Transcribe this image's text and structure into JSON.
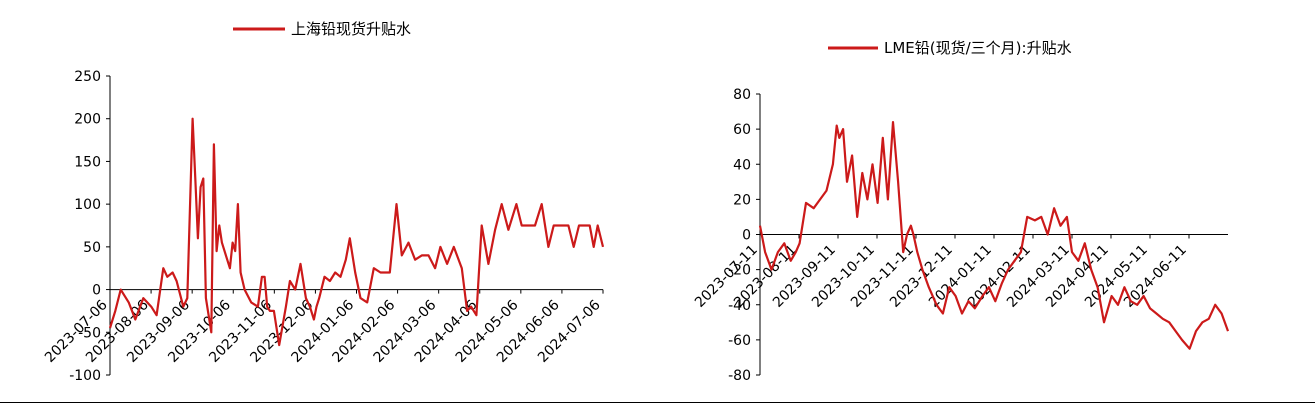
{
  "chart_data": [
    {
      "type": "line",
      "title": "",
      "xlabel": "",
      "ylabel": "",
      "ylim": [
        -100,
        250
      ],
      "y_ticks": [
        -100,
        -50,
        0,
        50,
        100,
        150,
        200,
        250
      ],
      "x_tick_labels": [
        "2023-07-06",
        "2023-08-06",
        "2023-09-06",
        "2023-10-06",
        "2023-11-06",
        "2023-12-06",
        "2024-01-06",
        "2024-02-06",
        "2024-03-06",
        "2024-04-06",
        "2024-05-06",
        "2024-06-06",
        "2024-07-06"
      ],
      "legend_position": "top",
      "grid": false,
      "series": [
        {
          "name": "上海铅现货升贴水",
          "color": "#cc1a1a",
          "x": [
            "2023-07-06",
            "2023-07-10",
            "2023-07-14",
            "2023-07-20",
            "2023-07-25",
            "2023-07-31",
            "2023-08-06",
            "2023-08-10",
            "2023-08-15",
            "2023-08-18",
            "2023-08-22",
            "2023-08-25",
            "2023-08-30",
            "2023-09-02",
            "2023-09-06",
            "2023-09-08",
            "2023-09-10",
            "2023-09-12",
            "2023-09-14",
            "2023-09-16",
            "2023-09-18",
            "2023-09-20",
            "2023-09-22",
            "2023-09-24",
            "2023-09-26",
            "2023-09-28",
            "2023-10-01",
            "2023-10-04",
            "2023-10-06",
            "2023-10-08",
            "2023-10-10",
            "2023-10-12",
            "2023-10-15",
            "2023-10-20",
            "2023-10-25",
            "2023-10-28",
            "2023-10-30",
            "2023-11-01",
            "2023-11-03",
            "2023-11-06",
            "2023-11-10",
            "2023-11-15",
            "2023-11-18",
            "2023-11-22",
            "2023-11-26",
            "2023-11-30",
            "2023-12-03",
            "2023-12-06",
            "2023-12-08",
            "2023-12-10",
            "2023-12-14",
            "2023-12-18",
            "2023-12-22",
            "2023-12-26",
            "2023-12-30",
            "2024-01-02",
            "2024-01-06",
            "2024-01-10",
            "2024-01-15",
            "2024-01-20",
            "2024-01-25",
            "2024-02-01",
            "2024-02-06",
            "2024-02-10",
            "2024-02-15",
            "2024-02-20",
            "2024-02-25",
            "2024-03-01",
            "2024-03-06",
            "2024-03-10",
            "2024-03-15",
            "2024-03-20",
            "2024-03-26",
            "2024-03-30",
            "2024-04-02",
            "2024-04-06",
            "2024-04-10",
            "2024-04-15",
            "2024-04-20",
            "2024-04-25",
            "2024-04-30",
            "2024-05-06",
            "2024-05-10",
            "2024-05-15",
            "2024-05-20",
            "2024-05-25",
            "2024-05-30",
            "2024-06-03",
            "2024-06-06",
            "2024-06-10",
            "2024-06-14",
            "2024-06-18",
            "2024-06-22",
            "2024-06-26",
            "2024-06-30",
            "2024-07-03",
            "2024-07-06",
            "2024-07-10"
          ],
          "y": [
            -45,
            -25,
            0,
            -15,
            -35,
            -10,
            -20,
            -30,
            25,
            15,
            20,
            10,
            -20,
            -10,
            200,
            130,
            60,
            120,
            130,
            -10,
            -30,
            -50,
            170,
            45,
            75,
            55,
            40,
            25,
            55,
            45,
            100,
            20,
            0,
            -15,
            -20,
            15,
            15,
            -20,
            -25,
            -25,
            -65,
            -20,
            10,
            0,
            30,
            -10,
            -20,
            -35,
            -20,
            -10,
            15,
            10,
            20,
            15,
            35,
            60,
            20,
            -10,
            -15,
            25,
            20,
            20,
            100,
            40,
            55,
            35,
            40,
            40,
            25,
            50,
            30,
            50,
            25,
            -25,
            -20,
            -30,
            75,
            30,
            70,
            100,
            70,
            100,
            75,
            75,
            75,
            100,
            50,
            75,
            75,
            75,
            75,
            50,
            75,
            75,
            75,
            50,
            75,
            50
          ]
        }
      ]
    },
    {
      "type": "line",
      "title": "",
      "xlabel": "",
      "ylabel": "",
      "ylim": [
        -80,
        80
      ],
      "y_ticks": [
        -80,
        -60,
        -40,
        -20,
        0,
        20,
        40,
        60,
        80
      ],
      "x_tick_labels": [
        "2023-07-11",
        "2023-08-11",
        "2023-09-11",
        "2023-10-11",
        "2023-11-11",
        "2023-12-11",
        "2024-01-11",
        "2024-02-11",
        "2024-03-11",
        "2024-04-11",
        "2024-05-11",
        "2024-06-11"
      ],
      "legend_position": "top",
      "grid": false,
      "series": [
        {
          "name": "LME铅(现货/三个月):升贴水",
          "color": "#cc1a1a",
          "x": [
            "2023-07-11",
            "2023-07-15",
            "2023-07-20",
            "2023-07-25",
            "2023-07-30",
            "2023-08-04",
            "2023-08-08",
            "2023-08-11",
            "2023-08-16",
            "2023-08-22",
            "2023-08-27",
            "2023-09-01",
            "2023-09-06",
            "2023-09-09",
            "2023-09-11",
            "2023-09-14",
            "2023-09-17",
            "2023-09-21",
            "2023-09-25",
            "2023-09-29",
            "2023-10-03",
            "2023-10-07",
            "2023-10-11",
            "2023-10-15",
            "2023-10-19",
            "2023-10-23",
            "2023-10-27",
            "2023-10-31",
            "2023-11-03",
            "2023-11-06",
            "2023-11-08",
            "2023-11-11",
            "2023-11-15",
            "2023-11-20",
            "2023-11-26",
            "2023-12-01",
            "2023-12-06",
            "2023-12-11",
            "2023-12-16",
            "2023-12-21",
            "2023-12-26",
            "2024-01-01",
            "2024-01-06",
            "2024-01-11",
            "2024-01-16",
            "2024-01-21",
            "2024-01-26",
            "2024-01-31",
            "2024-02-05",
            "2024-02-11",
            "2024-02-16",
            "2024-02-21",
            "2024-02-26",
            "2024-03-02",
            "2024-03-07",
            "2024-03-11",
            "2024-03-16",
            "2024-03-21",
            "2024-03-26",
            "2024-03-31",
            "2024-04-05",
            "2024-04-11",
            "2024-04-16",
            "2024-04-21",
            "2024-04-26",
            "2024-05-01",
            "2024-05-06",
            "2024-05-11",
            "2024-05-16",
            "2024-05-21",
            "2024-05-26",
            "2024-05-31",
            "2024-06-05",
            "2024-06-11",
            "2024-06-16",
            "2024-06-21",
            "2024-06-26",
            "2024-07-01",
            "2024-07-06",
            "2024-07-11"
          ],
          "y": [
            5,
            -10,
            -20,
            -10,
            -5,
            -15,
            -10,
            -5,
            18,
            15,
            20,
            25,
            40,
            62,
            55,
            60,
            30,
            45,
            10,
            35,
            20,
            40,
            18,
            55,
            20,
            64,
            30,
            -10,
            0,
            5,
            0,
            -10,
            -20,
            -30,
            -40,
            -45,
            -30,
            -35,
            -45,
            -38,
            -42,
            -35,
            -30,
            -38,
            -28,
            -20,
            -15,
            -10,
            10,
            8,
            10,
            0,
            15,
            5,
            10,
            -10,
            -15,
            -5,
            -20,
            -30,
            -50,
            -35,
            -40,
            -30,
            -38,
            -40,
            -35,
            -42,
            -45,
            -48,
            -50,
            -55,
            -60,
            -65,
            -55,
            -50,
            -48,
            -40,
            -45,
            -55
          ]
        }
      ]
    }
  ]
}
